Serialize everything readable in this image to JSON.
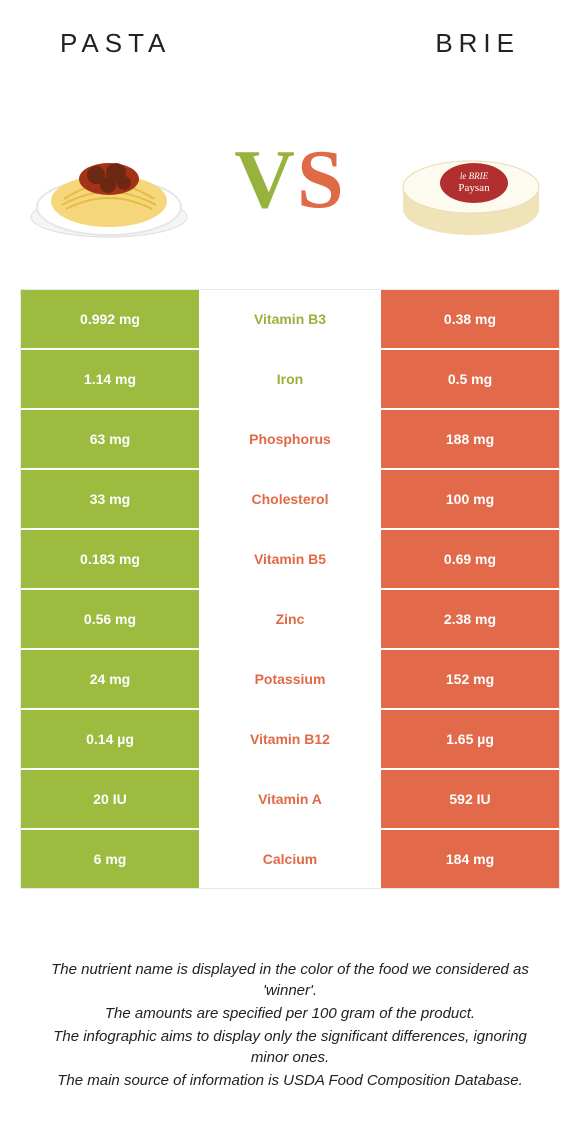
{
  "colors": {
    "left": "#9cbb3f",
    "right": "#e2694a",
    "leftText": "#98b23e",
    "rightText": "#e06a46"
  },
  "header": {
    "left": "PASTA",
    "right": "BRIE"
  },
  "vs": {
    "v": "V",
    "s": "S"
  },
  "rows": [
    {
      "left": "0.992 mg",
      "label": "Vitamin B3",
      "right": "0.38 mg",
      "winner": "left"
    },
    {
      "left": "1.14 mg",
      "label": "Iron",
      "right": "0.5 mg",
      "winner": "left"
    },
    {
      "left": "63 mg",
      "label": "Phosphorus",
      "right": "188 mg",
      "winner": "right"
    },
    {
      "left": "33 mg",
      "label": "Cholesterol",
      "right": "100 mg",
      "winner": "right"
    },
    {
      "left": "0.183 mg",
      "label": "Vitamin B5",
      "right": "0.69 mg",
      "winner": "right"
    },
    {
      "left": "0.56 mg",
      "label": "Zinc",
      "right": "2.38 mg",
      "winner": "right"
    },
    {
      "left": "24 mg",
      "label": "Potassium",
      "right": "152 mg",
      "winner": "right"
    },
    {
      "left": "0.14 µg",
      "label": "Vitamin B12",
      "right": "1.65 µg",
      "winner": "right"
    },
    {
      "left": "20 IU",
      "label": "Vitamin A",
      "right": "592 IU",
      "winner": "right"
    },
    {
      "left": "6 mg",
      "label": "Calcium",
      "right": "184 mg",
      "winner": "right"
    }
  ],
  "footer": [
    "The nutrient name is displayed in the color of the food we considered as 'winner'.",
    "The amounts are specified per 100 gram of the product.",
    "The infographic aims to display only the significant differences, ignoring minor ones.",
    "The main source of information is USDA Food Composition Database."
  ]
}
